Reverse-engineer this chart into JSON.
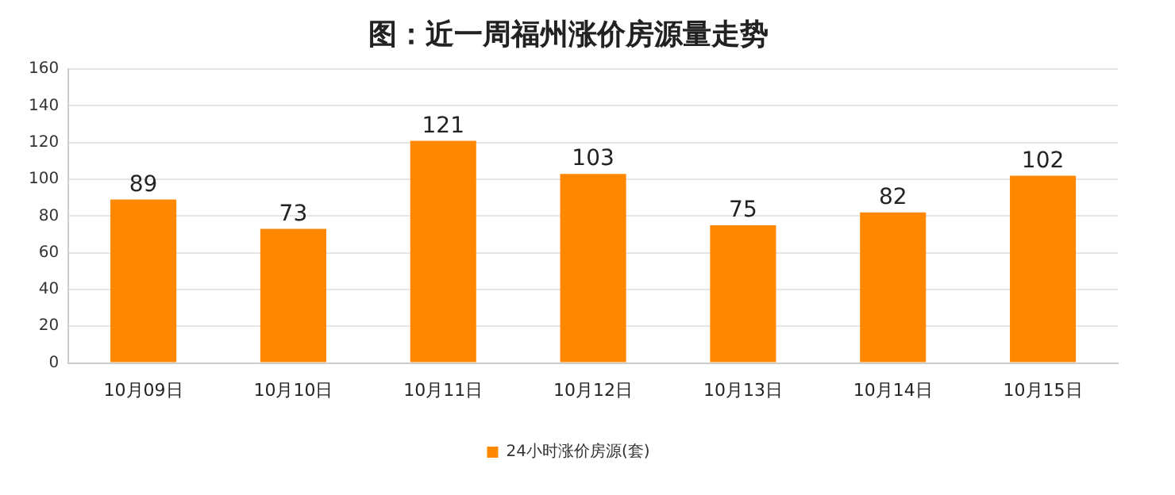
{
  "chart_data": {
    "type": "bar",
    "title": "图：近一周福州涨价房源量走势",
    "categories": [
      "10月09日",
      "10月10日",
      "10月11日",
      "10月12日",
      "10月13日",
      "10月14日",
      "10月15日"
    ],
    "series": [
      {
        "name": "24小时涨价房源(套)",
        "color": "#ff8800",
        "values": [
          89,
          73,
          121,
          103,
          75,
          82,
          102
        ]
      }
    ],
    "ylim": [
      0,
      160
    ],
    "yticks": [
      0,
      20,
      40,
      60,
      80,
      100,
      120,
      140,
      160
    ],
    "grid": "y",
    "legend": "bottom",
    "data_labels": true
  }
}
